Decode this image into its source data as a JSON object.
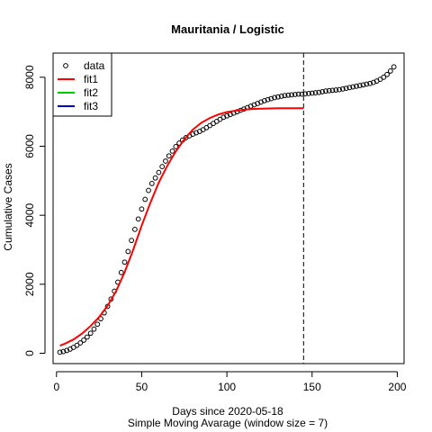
{
  "chart_data": {
    "type": "scatter",
    "title": "Mauritania / Logistic",
    "xlabel": "Days since 2020-05-18",
    "subtitle": "Simple Moving Avarage (window size = 7)",
    "ylabel": "Cumulative Cases",
    "xlim": [
      -2,
      204
    ],
    "ylim": [
      -300,
      8700
    ],
    "xticks": [
      0,
      50,
      100,
      150,
      200
    ],
    "yticks": [
      0,
      2000,
      4000,
      6000,
      8000
    ],
    "vline_x": 145,
    "legend_position": "top-left",
    "legend": [
      "data",
      "fit1",
      "fit2",
      "fit3"
    ],
    "colors": {
      "data": "#000000",
      "fit1": "#ff0000",
      "fit2": "#00cd00",
      "fit3": "#0000cd",
      "vline": "#000000"
    },
    "series": [
      {
        "name": "data",
        "style": "points",
        "x": [
          2,
          4,
          6,
          8,
          10,
          12,
          14,
          16,
          18,
          20,
          22,
          24,
          26,
          28,
          30,
          32,
          34,
          36,
          38,
          40,
          42,
          44,
          46,
          48,
          50,
          52,
          54,
          56,
          58,
          60,
          62,
          64,
          66,
          68,
          70,
          72,
          74,
          76,
          78,
          80,
          82,
          84,
          86,
          88,
          90,
          92,
          94,
          96,
          98,
          100,
          102,
          104,
          106,
          108,
          110,
          112,
          114,
          116,
          118,
          120,
          122,
          124,
          126,
          128,
          130,
          132,
          134,
          136,
          138,
          140,
          142,
          144,
          146,
          148,
          150,
          152,
          154,
          156,
          158,
          160,
          162,
          164,
          166,
          168,
          170,
          172,
          174,
          176,
          178,
          180,
          182,
          184,
          186,
          188,
          190,
          192,
          194,
          196,
          198
        ],
        "y": [
          30,
          50,
          80,
          120,
          170,
          230,
          300,
          380,
          470,
          580,
          700,
          840,
          1000,
          1170,
          1360,
          1570,
          1800,
          2060,
          2340,
          2640,
          2950,
          3270,
          3590,
          3890,
          4180,
          4460,
          4720,
          4920,
          5080,
          5240,
          5410,
          5570,
          5720,
          5860,
          5990,
          6090,
          6180,
          6250,
          6300,
          6350,
          6390,
          6430,
          6480,
          6540,
          6600,
          6660,
          6720,
          6780,
          6840,
          6880,
          6920,
          6960,
          7000,
          7040,
          7080,
          7120,
          7160,
          7200,
          7240,
          7280,
          7320,
          7350,
          7380,
          7410,
          7430,
          7450,
          7470,
          7480,
          7490,
          7500,
          7510,
          7510,
          7520,
          7530,
          7540,
          7550,
          7560,
          7580,
          7600,
          7610,
          7620,
          7630,
          7640,
          7660,
          7680,
          7700,
          7720,
          7740,
          7760,
          7780,
          7800,
          7820,
          7850,
          7890,
          7940,
          8000,
          8080,
          8180,
          8300
        ]
      },
      {
        "name": "fit1",
        "style": "line",
        "x": [
          2,
          5,
          10,
          15,
          20,
          25,
          30,
          35,
          40,
          45,
          50,
          55,
          60,
          65,
          70,
          75,
          80,
          85,
          90,
          95,
          100,
          105,
          110,
          115,
          120,
          125,
          130,
          135,
          140,
          145
        ],
        "y": [
          220,
          280,
          400,
          570,
          790,
          1050,
          1380,
          1800,
          2350,
          3000,
          3700,
          4350,
          4950,
          5430,
          5850,
          6200,
          6480,
          6680,
          6820,
          6920,
          6990,
          7030,
          7060,
          7080,
          7090,
          7095,
          7100,
          7100,
          7100,
          7100
        ]
      },
      {
        "name": "fit2",
        "style": "line",
        "x": [],
        "y": []
      },
      {
        "name": "fit3",
        "style": "line",
        "x": [],
        "y": []
      }
    ]
  }
}
